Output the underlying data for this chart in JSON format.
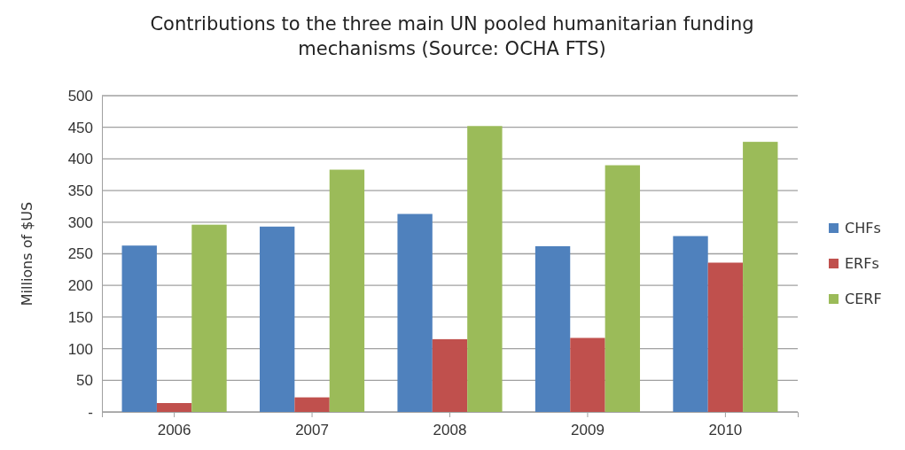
{
  "chart_data": {
    "type": "bar",
    "title": "Contributions to the three main UN pooled humanitarian funding mechanisms (Source: OCHA FTS)",
    "ylabel": "Millions of $US",
    "categories": [
      "2006",
      "2007",
      "2008",
      "2009",
      "2010"
    ],
    "series": [
      {
        "name": "CHFs",
        "color": "#4f81bd",
        "values": [
          263,
          293,
          313,
          262,
          278
        ]
      },
      {
        "name": "ERFs",
        "color": "#c0504d",
        "values": [
          14,
          23,
          115,
          117,
          236
        ]
      },
      {
        "name": "CERF",
        "color": "#9bbb59",
        "values": [
          296,
          383,
          452,
          390,
          427
        ]
      }
    ],
    "ylim": [
      0,
      500
    ],
    "yticks": [
      {
        "value": 0,
        "label": "-"
      },
      50,
      100,
      150,
      200,
      250,
      300,
      350,
      400,
      450,
      500
    ],
    "grid": "y",
    "legend": "right"
  }
}
